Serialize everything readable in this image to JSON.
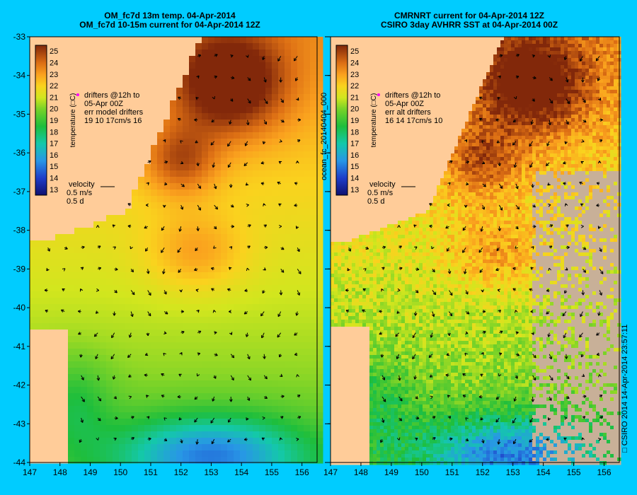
{
  "left_panel": {
    "title_line1": "OM_fc7d 13m temp. 04-Apr-2014",
    "title_line2": "OM_fc7d 10-15m current for 04-Apr-2014 12Z",
    "drifters_text": [
      "drifters @12h to",
      "05-Apr 00Z",
      "err model drifters",
      "19 10 17cm/s 16"
    ],
    "velocity_text": [
      "velocity",
      "0.5 m/s",
      "0.5 d"
    ]
  },
  "right_panel": {
    "title_line1": "CMRNRT current for 04-Apr-2014 12Z",
    "title_line2": "CSIRO 3day AVHRR SST at 04-Apr-2014 00Z",
    "drifters_text": [
      "drifters @12h to",
      "05-Apr 00Z",
      "err alt drifters",
      "16 14 17cm/s 10"
    ],
    "velocity_text": [
      "velocity",
      "0.5 m/s",
      "0.5 d"
    ]
  },
  "side_labels": {
    "middle": "ocean_fc_20140404_000",
    "right": "□ CSIRO 2014   14-Apr-2014 23:57:11"
  },
  "colorbar": {
    "label": "temperature (□C)",
    "ticks": [
      13,
      14,
      15,
      16,
      17,
      18,
      19,
      20,
      21,
      22,
      23,
      24,
      25
    ]
  },
  "colors": {
    "background": "#00ccff",
    "land": "#ffcc99",
    "no_data": "#c8b098",
    "arrow": "#000000",
    "drifter": "#ff00ff"
  },
  "chart_data": [
    {
      "type": "heatmap",
      "title": "OM_fc7d 13m temp. 04-Apr-2014 / OM_fc7d 10-15m current for 04-Apr-2014 12Z",
      "xlim": [
        147,
        156.5
      ],
      "ylim": [
        -44,
        -33
      ],
      "x_ticks": [
        147,
        148,
        149,
        150,
        151,
        152,
        153,
        154,
        155,
        156
      ],
      "y_ticks": [
        -33,
        -34,
        -35,
        -36,
        -37,
        -38,
        -39,
        -40,
        -41,
        -42,
        -43,
        -44
      ],
      "value_range": [
        12.5,
        25.5
      ],
      "features": [
        {
          "kind": "warm_core_eddy",
          "lon": 151.8,
          "lat": -36.2,
          "temp": 22.5
        },
        {
          "kind": "eddy",
          "lon": 153.8,
          "lat": -38.3,
          "temp": 22
        },
        {
          "kind": "eddy",
          "lon": 151.5,
          "lat": -41.5,
          "temp": 20
        },
        {
          "kind": "eddy",
          "lon": 149.8,
          "lat": -40.7,
          "temp": 20.5
        },
        {
          "kind": "east_australian_current_core",
          "lon": 153.5,
          "lat": -34,
          "temp": 25
        },
        {
          "kind": "cool_water_south",
          "lon": 153,
          "lat": -43.5,
          "temp": 15
        }
      ]
    },
    {
      "type": "heatmap",
      "title": "CMRNRT current for 04-Apr-2014 12Z / CSIRO 3day AVHRR SST at 04-Apr-2014 00Z",
      "xlim": [
        147,
        156.5
      ],
      "ylim": [
        -44,
        -33
      ],
      "x_ticks": [
        147,
        148,
        149,
        150,
        151,
        152,
        153,
        154,
        155,
        156
      ],
      "y_ticks": [
        -33,
        -34,
        -35,
        -36,
        -37,
        -38,
        -39,
        -40,
        -41,
        -42,
        -43,
        -44
      ],
      "value_range": [
        12.5,
        25.5
      ],
      "features": [
        {
          "kind": "east_australian_current_core",
          "lon": 153.3,
          "lat": -34,
          "temp": 25
        },
        {
          "kind": "warm_tongue",
          "lon": 152,
          "lat": -38,
          "temp": 22
        },
        {
          "kind": "cool_water_south",
          "lon": 152,
          "lat": -43.5,
          "temp": 16
        }
      ]
    }
  ]
}
